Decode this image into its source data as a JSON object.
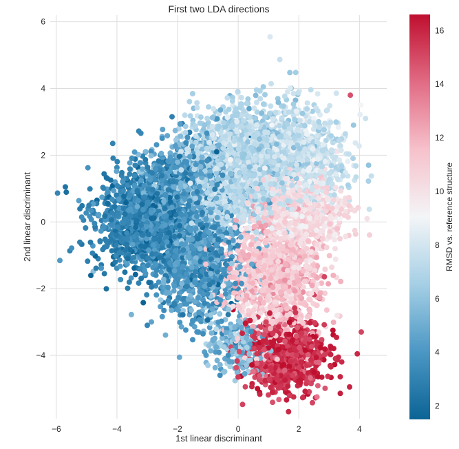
{
  "chart_data": {
    "type": "scatter",
    "title": "First two LDA directions",
    "xlabel": "1st linear discriminant",
    "ylabel": "2nd linear discriminant",
    "xlim": [
      -6.2,
      4.9
    ],
    "ylim": [
      -5.9,
      6.2
    ],
    "x_ticks": [
      -6,
      -4,
      -2,
      0,
      2,
      4
    ],
    "y_ticks": [
      -4,
      -2,
      0,
      2,
      4,
      6
    ],
    "x_tick_labels": [
      "−6",
      "−4",
      "−2",
      "0",
      "2",
      "4"
    ],
    "y_tick_labels": [
      "−4",
      "−2",
      "0",
      "2",
      "4",
      "6"
    ],
    "grid": true,
    "colorbar": {
      "label": "RMSD vs. reference structure",
      "range": [
        1.5,
        16.6
      ],
      "ticks": [
        2,
        4,
        6,
        8,
        10,
        12,
        14,
        16
      ],
      "tick_labels": [
        "2",
        "4",
        "6",
        "8",
        "10",
        "12",
        "14",
        "16"
      ],
      "colormap": "RdBu_r (diverging)",
      "colors": [
        "#0b6495",
        "#4b97c4",
        "#a5cfe5",
        "#f3f5f7",
        "#f6c1cb",
        "#e16b84",
        "#bf0f2f"
      ]
    },
    "clusters": [
      {
        "x": -3.0,
        "y": 0.0,
        "sx": 0.85,
        "sy": 0.75,
        "rmsd": 3.0,
        "rmsd_sd": 0.8,
        "n": 1300
      },
      {
        "x": -1.6,
        "y": 1.0,
        "sx": 0.8,
        "sy": 0.75,
        "rmsd": 4.3,
        "rmsd_sd": 1.0,
        "n": 900
      },
      {
        "x": -1.2,
        "y": -1.5,
        "sx": 0.7,
        "sy": 0.85,
        "rmsd": 4.0,
        "rmsd_sd": 0.9,
        "n": 700
      },
      {
        "x": 0.5,
        "y": 2.0,
        "sx": 1.0,
        "sy": 0.75,
        "rmsd": 7.0,
        "rmsd_sd": 0.8,
        "n": 1500
      },
      {
        "x": -0.3,
        "y": 0.9,
        "sx": 0.7,
        "sy": 0.55,
        "rmsd": 7.3,
        "rmsd_sd": 0.5,
        "n": 600
      },
      {
        "x": 2.2,
        "y": 2.0,
        "sx": 0.75,
        "sy": 0.75,
        "rmsd": 7.8,
        "rmsd_sd": 0.6,
        "n": 600
      },
      {
        "x": 2.3,
        "y": 0.3,
        "sx": 0.7,
        "sy": 0.55,
        "rmsd": 10.3,
        "rmsd_sd": 0.6,
        "n": 500
      },
      {
        "x": 1.2,
        "y": -1.6,
        "sx": 0.75,
        "sy": 0.9,
        "rmsd": 11.3,
        "rmsd_sd": 0.8,
        "n": 1100
      },
      {
        "x": 1.6,
        "y": -4.0,
        "sx": 0.65,
        "sy": 0.55,
        "rmsd": 15.7,
        "rmsd_sd": 0.7,
        "n": 900
      },
      {
        "x": 0.0,
        "y": -3.7,
        "sx": 0.5,
        "sy": 0.4,
        "rmsd": 5.4,
        "rmsd_sd": 0.9,
        "n": 200
      }
    ],
    "outliers": [
      {
        "x": 1.05,
        "y": 5.55,
        "rmsd": 8.2
      },
      {
        "x": -3.0,
        "y": -3.1,
        "rmsd": 3.2
      },
      {
        "x": -5.7,
        "y": 1.05,
        "rmsd": 2.3
      },
      {
        "x": 3.7,
        "y": 3.8,
        "rmsd": 14.8
      },
      {
        "x": 4.2,
        "y": 3.1,
        "rmsd": 7.8
      },
      {
        "x": -0.6,
        "y": -4.6,
        "rmsd": 3.5
      },
      {
        "x": -1.0,
        "y": -4.3,
        "rmsd": 6.5
      },
      {
        "x": 4.3,
        "y": 1.7,
        "rmsd": 6.0
      }
    ]
  }
}
